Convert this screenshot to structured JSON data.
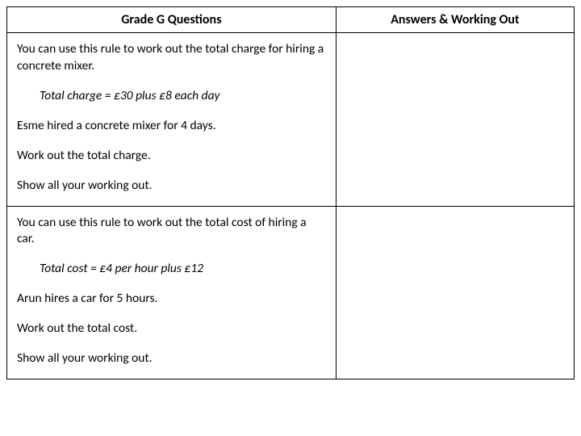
{
  "colors": {
    "border": "#000000",
    "background": "#ffffff",
    "text": "#000000"
  },
  "typography": {
    "font_family": "Calibri, Arial, sans-serif",
    "header_fontsize": 16,
    "body_fontsize": 15.5,
    "header_weight": "bold"
  },
  "layout": {
    "question_col_width_pct": 58,
    "answer_col_width_pct": 42
  },
  "headers": {
    "questions": "Grade G Questions",
    "answers": "Answers & Working Out"
  },
  "rows": [
    {
      "intro": "You can use this rule to work out the total charge for hiring a concrete mixer.",
      "formula": "Total charge = £30 plus £8 each day",
      "scenario": "Esme hired a concrete mixer for 4 days.",
      "instruction1": "Work out the total charge.",
      "instruction2": "Show all your working out.",
      "answer": ""
    },
    {
      "intro": "You can use this rule to work out the total cost of hiring a car.",
      "formula": "Total cost = £4 per hour plus £12",
      "scenario": "Arun hires a car for 5 hours.",
      "instruction1": "Work out the total cost.",
      "instruction2": "Show all your working out.",
      "answer": ""
    }
  ]
}
